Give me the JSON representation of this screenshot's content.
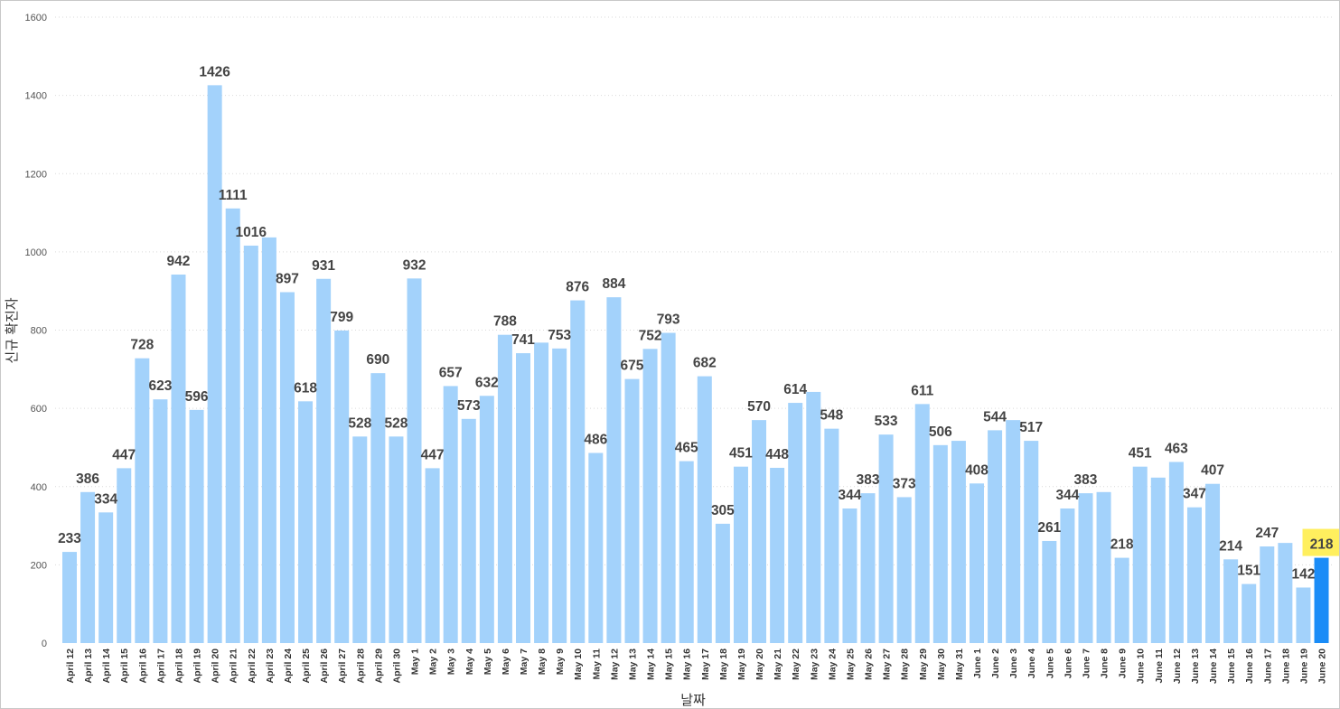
{
  "chart_data": {
    "type": "bar",
    "title": "",
    "xlabel": "날짜",
    "ylabel": "신규 확진자",
    "ylim": [
      0,
      1600
    ],
    "yticks": [
      0,
      200,
      400,
      600,
      800,
      1000,
      1200,
      1400,
      1600
    ],
    "grid": true,
    "colors": {
      "bar": "#a3d2fb",
      "highlight_bar": "#1a8cf7",
      "highlight_label_bg": "#ffef5e",
      "label_text": "#444444"
    },
    "highlight_index": 69,
    "categories": [
      "April 12",
      "April 13",
      "April 14",
      "April 15",
      "April 16",
      "April 17",
      "April 18",
      "April 19",
      "April 20",
      "April 21",
      "April 22",
      "April 23",
      "April 24",
      "April 25",
      "April 26",
      "April 27",
      "April 28",
      "April 29",
      "April 30",
      "May 1",
      "May 2",
      "May 3",
      "May 4",
      "May 5",
      "May 6",
      "May 7",
      "May 8",
      "May 9",
      "May 10",
      "May 11",
      "May 12",
      "May 13",
      "May 14",
      "May 15",
      "May 16",
      "May 17",
      "May 18",
      "May 19",
      "May 20",
      "May 21",
      "May 22",
      "May 23",
      "May 24",
      "May 25",
      "May 26",
      "May 27",
      "May 28",
      "May 29",
      "May 30",
      "May 31",
      "June 1",
      "June 2",
      "June 3",
      "June 4",
      "June 5",
      "June 6",
      "June 7",
      "June 8",
      "June 9",
      "June 10",
      "June 11",
      "June 12",
      "June 13",
      "June 14",
      "June 15",
      "June 16",
      "June 17",
      "June 18",
      "June 19",
      "June 20"
    ],
    "values": [
      233,
      386,
      334,
      447,
      728,
      623,
      942,
      596,
      1426,
      1111,
      1016,
      1037,
      897,
      618,
      931,
      799,
      528,
      690,
      528,
      932,
      447,
      657,
      573,
      632,
      788,
      741,
      768,
      753,
      876,
      486,
      884,
      675,
      752,
      793,
      465,
      682,
      305,
      451,
      570,
      448,
      614,
      642,
      548,
      344,
      383,
      533,
      373,
      611,
      506,
      517,
      408,
      544,
      570,
      517,
      261,
      344,
      383,
      386,
      218,
      451,
      423,
      463,
      347,
      407,
      214,
      151,
      247,
      256,
      142,
      218
    ],
    "labels": [
      "233",
      "386",
      "334",
      "447",
      "728",
      "623",
      "942",
      "596",
      "1426",
      "1111",
      "1016",
      "",
      "897",
      "618",
      "931",
      "799",
      "528",
      "690",
      "528",
      "932",
      "447",
      "657",
      "573",
      "632",
      "788",
      "741",
      "",
      "753",
      "876",
      "486",
      "884",
      "675",
      "752",
      "793",
      "465",
      "682",
      "305",
      "451",
      "570",
      "448",
      "614",
      "",
      "548",
      "344",
      "383",
      "533",
      "373",
      "611",
      "506",
      "",
      "408",
      "544",
      "",
      "517",
      "261",
      "344",
      "383",
      "",
      "218",
      "451",
      "",
      "463",
      "347",
      "407",
      "214",
      "151",
      "247",
      "",
      "142",
      "218"
    ]
  }
}
